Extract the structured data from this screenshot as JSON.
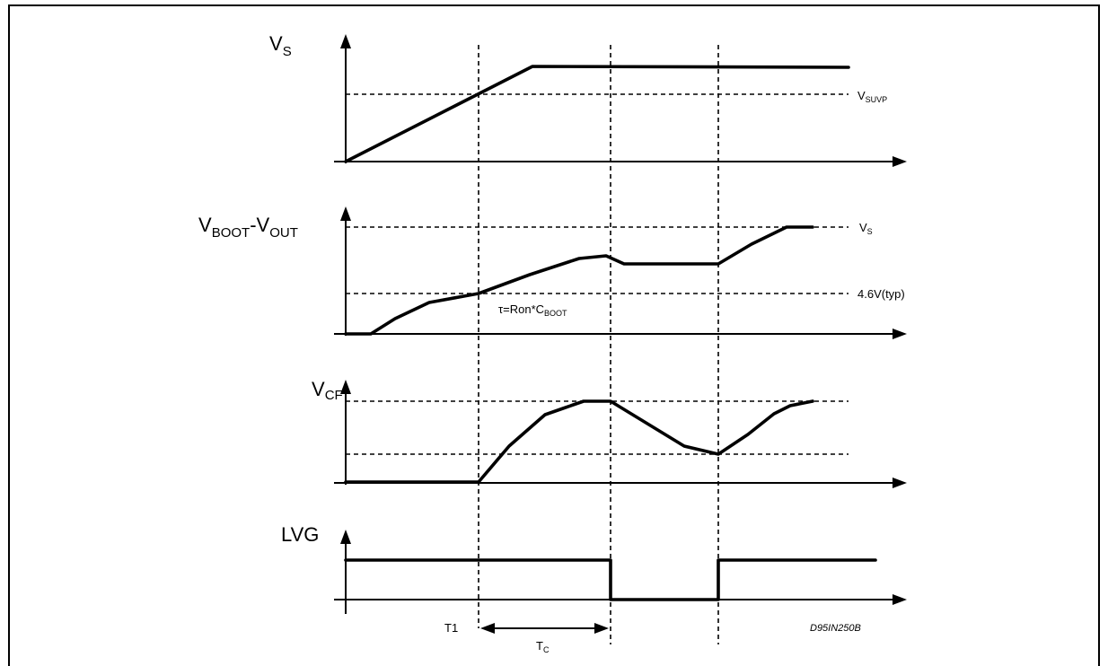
{
  "signals": {
    "vs": {
      "main": "V",
      "sub": "S"
    },
    "vboot": {
      "main1": "V",
      "sub1": "BOOT",
      "dash": "-V",
      "sub2": "OUT"
    },
    "vcf": {
      "main": "V",
      "sub": "CF"
    },
    "lvg": {
      "label": "LVG"
    }
  },
  "levels": {
    "vsuvp": {
      "main": "V",
      "sub": "SUVP"
    },
    "vs_level": {
      "main": "V",
      "sub": "S"
    },
    "v46": {
      "text": "4.6V(typ)"
    }
  },
  "annotations": {
    "tau": {
      "pre": "τ=Ron*C",
      "sub": "BOOT"
    },
    "t1": "T1",
    "tc": {
      "main": "T",
      "sub": "C"
    },
    "ref": "D95IN250B"
  }
}
